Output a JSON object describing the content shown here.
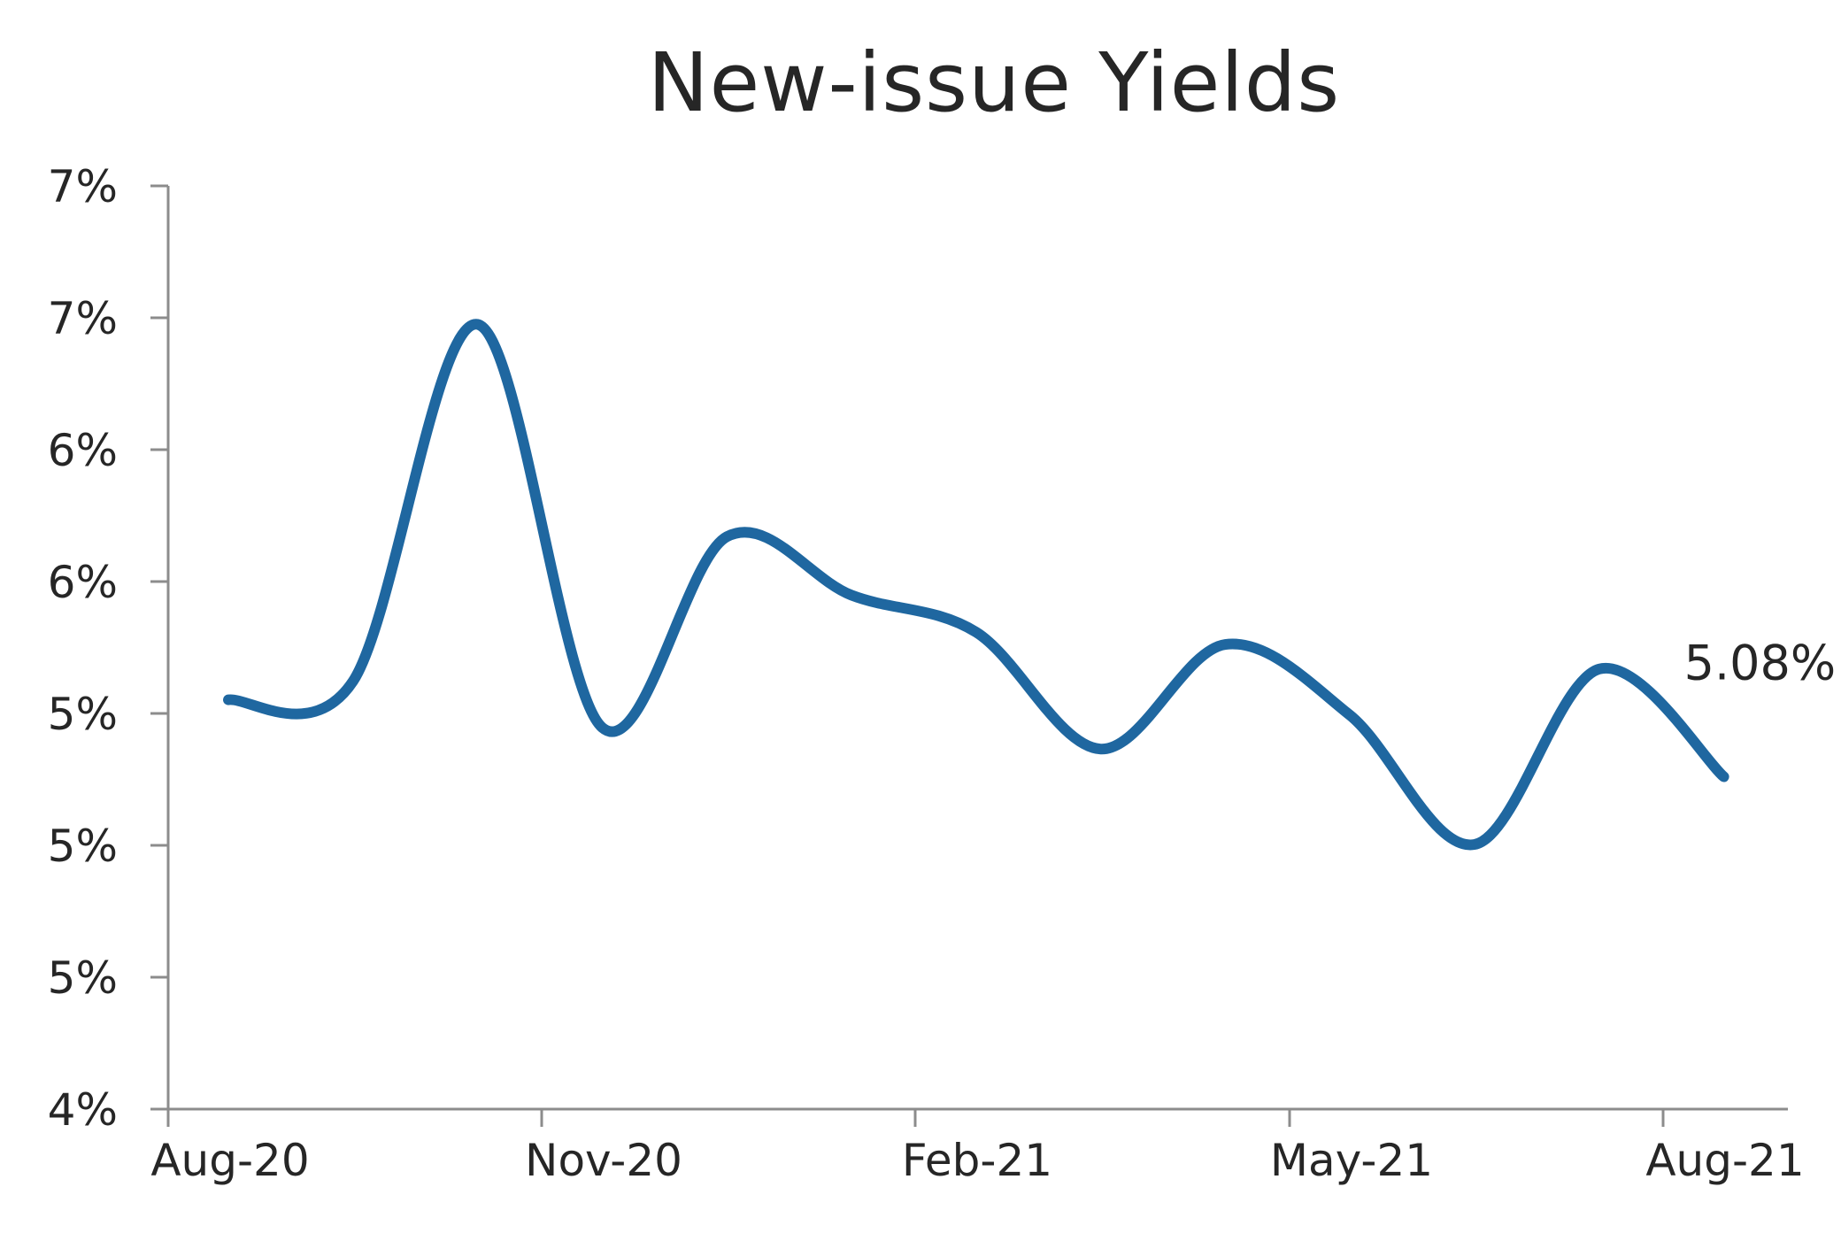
{
  "chart_data": {
    "type": "line",
    "title": "New-issue Yields",
    "xlabel": "",
    "ylabel": "",
    "y_tick_labels": [
      "4%",
      "5%",
      "5%",
      "5%",
      "6%",
      "6%",
      "7%",
      "7%"
    ],
    "x_tick_labels": [
      "Aug-20",
      "Nov-20",
      "Feb-21",
      "May-21",
      "Aug-21"
    ],
    "ylim": [
      4.0,
      7.0
    ],
    "grid": false,
    "legend": "none",
    "end_label": "5.08%",
    "series": [
      {
        "color": "#1f67a0",
        "x": [
          "Aug-20",
          "Sep-20",
          "Oct-20",
          "Nov-20",
          "Dec-20",
          "Jan-21",
          "Feb-21",
          "Mar-21",
          "Apr-21",
          "May-21",
          "Jun-21",
          "Jul-21",
          "Aug-21"
        ],
        "values": [
          5.33,
          5.39,
          6.55,
          5.24,
          5.86,
          5.67,
          5.55,
          5.17,
          5.51,
          5.28,
          4.86,
          5.43,
          5.08
        ]
      }
    ]
  }
}
